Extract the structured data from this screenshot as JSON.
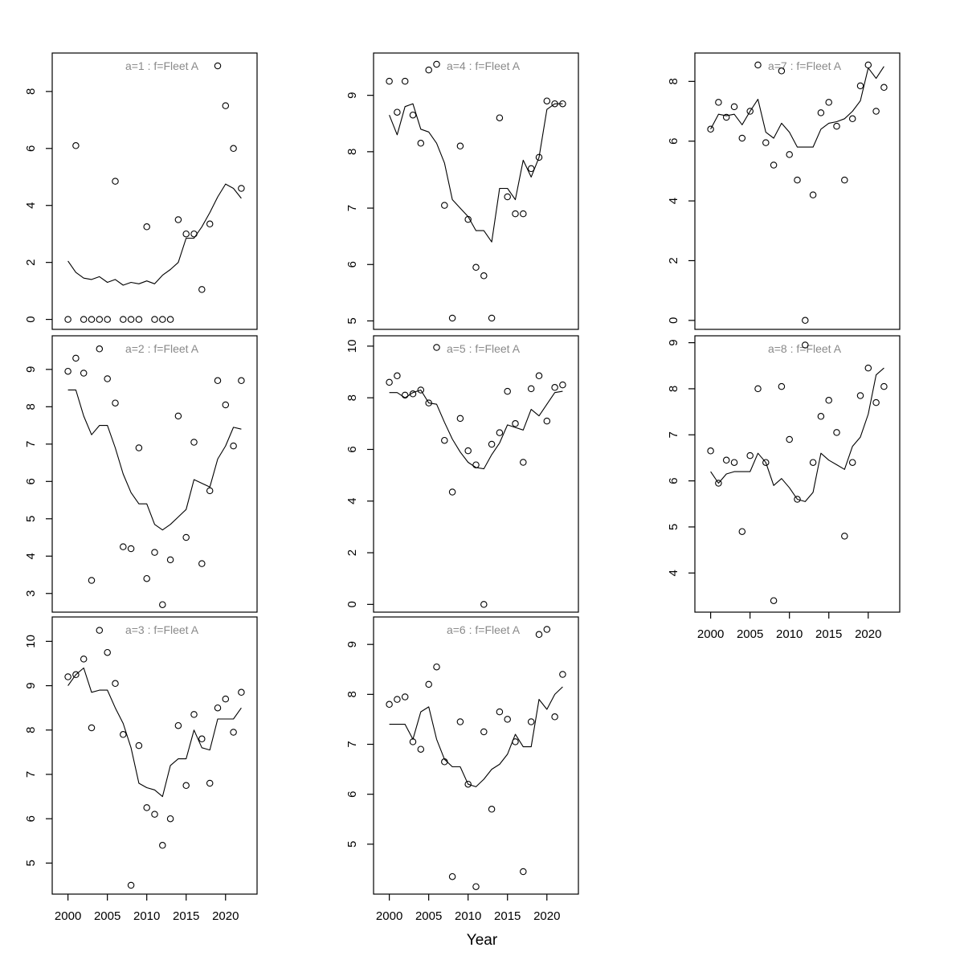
{
  "figure": {
    "xlabel": "Year",
    "background_color": "#ffffff",
    "title_color": "#8a8a8a",
    "axis_color": "#000000",
    "marker": "open-circle"
  },
  "chart_data": {
    "type": "scatter",
    "description": "2x4 panel grid (3 columns) of survey index observations (open circles) with fitted lines per age class, Fleet A",
    "xlabel": "Year",
    "x": [
      2000,
      2001,
      2002,
      2003,
      2004,
      2005,
      2006,
      2007,
      2008,
      2009,
      2010,
      2011,
      2012,
      2013,
      2014,
      2015,
      2016,
      2017,
      2018,
      2019,
      2020,
      2021,
      2022
    ],
    "xticks": [
      2000,
      2005,
      2010,
      2015,
      2020
    ],
    "xlim": [
      1998,
      2024
    ],
    "grid": false,
    "legend": "none",
    "panels": [
      {
        "id": "a1",
        "title": "a=1 : f=Fleet A",
        "grid": {
          "row": 0,
          "col": 0
        },
        "ylim": [
          -0.35,
          9.35
        ],
        "yticks": [
          0,
          2,
          4,
          6,
          8
        ],
        "show_xaxis": false,
        "points": [
          0,
          6.1,
          0,
          0,
          0,
          0,
          4.85,
          0,
          0,
          0,
          3.25,
          0,
          0,
          0,
          3.5,
          3.0,
          3.0,
          1.05,
          3.35,
          8.9,
          7.5,
          6.0,
          4.6
        ],
        "line": [
          2.05,
          1.65,
          1.45,
          1.4,
          1.5,
          1.3,
          1.4,
          1.2,
          1.3,
          1.25,
          1.35,
          1.25,
          1.55,
          1.75,
          2.0,
          2.85,
          2.85,
          3.25,
          3.75,
          4.3,
          4.75,
          4.6,
          4.25
        ]
      },
      {
        "id": "a2",
        "title": "a=2 : f=Fleet A",
        "grid": {
          "row": 1,
          "col": 0
        },
        "ylim": [
          2.5,
          9.9
        ],
        "yticks": [
          3,
          4,
          5,
          6,
          7,
          8,
          9
        ],
        "show_xaxis": false,
        "points": [
          8.95,
          9.3,
          8.9,
          3.35,
          9.55,
          8.75,
          8.1,
          4.25,
          4.2,
          6.9,
          3.4,
          4.1,
          2.7,
          3.9,
          7.75,
          4.5,
          7.05,
          3.8,
          5.75,
          8.7,
          8.05,
          6.95,
          8.7
        ],
        "line": [
          8.45,
          8.45,
          7.75,
          7.25,
          7.5,
          7.5,
          6.9,
          6.2,
          5.7,
          5.4,
          5.4,
          4.85,
          4.7,
          4.85,
          5.05,
          5.25,
          6.05,
          5.95,
          5.85,
          6.6,
          6.95,
          7.45,
          7.4
        ]
      },
      {
        "id": "a3",
        "title": "a=3 : f=Fleet A",
        "grid": {
          "row": 2,
          "col": 0
        },
        "ylim": [
          4.3,
          10.55
        ],
        "yticks": [
          5,
          6,
          7,
          8,
          9,
          10
        ],
        "show_xaxis": true,
        "points": [
          9.2,
          9.25,
          9.6,
          8.05,
          10.25,
          9.75,
          9.05,
          7.9,
          4.5,
          7.65,
          6.25,
          6.1,
          5.4,
          6.0,
          8.1,
          6.75,
          8.35,
          7.8,
          6.8,
          8.5,
          8.7,
          7.95,
          8.85
        ],
        "line": [
          9.0,
          9.25,
          9.4,
          8.85,
          8.9,
          8.9,
          8.5,
          8.15,
          7.6,
          6.8,
          6.7,
          6.65,
          6.5,
          7.2,
          7.35,
          7.35,
          8.0,
          7.6,
          7.55,
          8.25,
          8.25,
          8.25,
          8.5
        ]
      },
      {
        "id": "a4",
        "title": "a=4 : f=Fleet A",
        "grid": {
          "row": 0,
          "col": 1
        },
        "ylim": [
          4.85,
          9.75
        ],
        "yticks": [
          5,
          6,
          7,
          8,
          9
        ],
        "show_xaxis": false,
        "points": [
          9.25,
          8.7,
          9.25,
          8.65,
          8.15,
          9.45,
          9.55,
          7.05,
          5.05,
          8.1,
          6.8,
          5.95,
          5.8,
          5.05,
          8.6,
          7.2,
          6.9,
          6.9,
          7.7,
          7.9,
          8.9,
          8.85,
          8.85
        ],
        "line": [
          8.65,
          8.3,
          8.8,
          8.85,
          8.4,
          8.35,
          8.15,
          7.8,
          7.15,
          7.0,
          6.85,
          6.6,
          6.6,
          6.4,
          7.35,
          7.35,
          7.15,
          7.85,
          7.55,
          7.9,
          8.75,
          8.85,
          8.85
        ]
      },
      {
        "id": "a5",
        "title": "a=5 : f=Fleet A",
        "grid": {
          "row": 1,
          "col": 1
        },
        "ylim": [
          -0.3,
          10.4
        ],
        "yticks": [
          0,
          2,
          4,
          6,
          8,
          10
        ],
        "show_xaxis": false,
        "points": [
          8.6,
          8.85,
          8.1,
          8.15,
          8.3,
          7.8,
          9.95,
          6.35,
          4.35,
          7.2,
          5.95,
          5.4,
          0.0,
          6.2,
          6.65,
          8.25,
          7.0,
          5.5,
          8.35,
          8.85,
          7.1,
          8.4,
          8.5
        ],
        "line": [
          8.2,
          8.2,
          8.0,
          8.2,
          8.3,
          7.8,
          7.75,
          7.05,
          6.4,
          5.9,
          5.5,
          5.3,
          5.25,
          5.8,
          6.25,
          6.95,
          6.85,
          6.75,
          7.55,
          7.3,
          7.75,
          8.2,
          8.25
        ]
      },
      {
        "id": "a6",
        "title": "a=6 : f=Fleet A",
        "grid": {
          "row": 2,
          "col": 1
        },
        "ylim": [
          4.0,
          9.55
        ],
        "yticks": [
          5,
          6,
          7,
          8,
          9
        ],
        "show_xaxis": true,
        "points": [
          7.8,
          7.9,
          7.95,
          7.05,
          6.9,
          8.2,
          8.55,
          6.65,
          4.35,
          7.45,
          6.2,
          4.15,
          7.25,
          5.7,
          7.65,
          7.5,
          7.05,
          4.45,
          7.45,
          9.2,
          9.3,
          7.55,
          8.4
        ],
        "line": [
          7.4,
          7.4,
          7.4,
          7.1,
          7.65,
          7.75,
          7.1,
          6.7,
          6.55,
          6.55,
          6.2,
          6.15,
          6.3,
          6.5,
          6.6,
          6.8,
          7.2,
          6.95,
          6.95,
          7.9,
          7.7,
          8.0,
          8.15
        ]
      },
      {
        "id": "a7",
        "title": "a=7 : f=Fleet A",
        "grid": {
          "row": 0,
          "col": 2
        },
        "ylim": [
          -0.3,
          8.95
        ],
        "yticks": [
          0,
          2,
          4,
          6,
          8
        ],
        "show_xaxis": false,
        "points": [
          6.4,
          7.3,
          6.8,
          7.15,
          6.1,
          7.0,
          8.55,
          5.95,
          5.2,
          8.35,
          5.55,
          4.7,
          0.0,
          4.2,
          6.95,
          7.3,
          6.5,
          4.7,
          6.75,
          7.85,
          8.55,
          7.0,
          7.8
        ],
        "line": [
          6.4,
          6.9,
          6.85,
          6.9,
          6.55,
          7.0,
          7.4,
          6.3,
          6.1,
          6.6,
          6.3,
          5.8,
          5.8,
          5.8,
          6.4,
          6.6,
          6.65,
          6.75,
          7.0,
          7.35,
          8.45,
          8.1,
          8.5
        ]
      },
      {
        "id": "a8",
        "title": "a=8 : f=Fleet A",
        "grid": {
          "row": 1,
          "col": 2
        },
        "ylim": [
          3.15,
          9.15
        ],
        "yticks": [
          4,
          5,
          6,
          7,
          8,
          9
        ],
        "show_xaxis": true,
        "points": [
          6.65,
          5.95,
          6.45,
          6.4,
          4.9,
          6.55,
          8.0,
          6.4,
          3.4,
          8.05,
          6.9,
          5.6,
          8.95,
          6.4,
          7.4,
          7.75,
          7.05,
          4.8,
          6.4,
          7.85,
          8.45,
          7.7,
          8.05
        ],
        "line": [
          6.2,
          5.95,
          6.15,
          6.2,
          6.2,
          6.2,
          6.6,
          6.4,
          5.9,
          6.05,
          5.85,
          5.6,
          5.55,
          5.75,
          6.6,
          6.45,
          6.35,
          6.25,
          6.75,
          6.95,
          7.45,
          8.3,
          8.45
        ]
      }
    ]
  }
}
